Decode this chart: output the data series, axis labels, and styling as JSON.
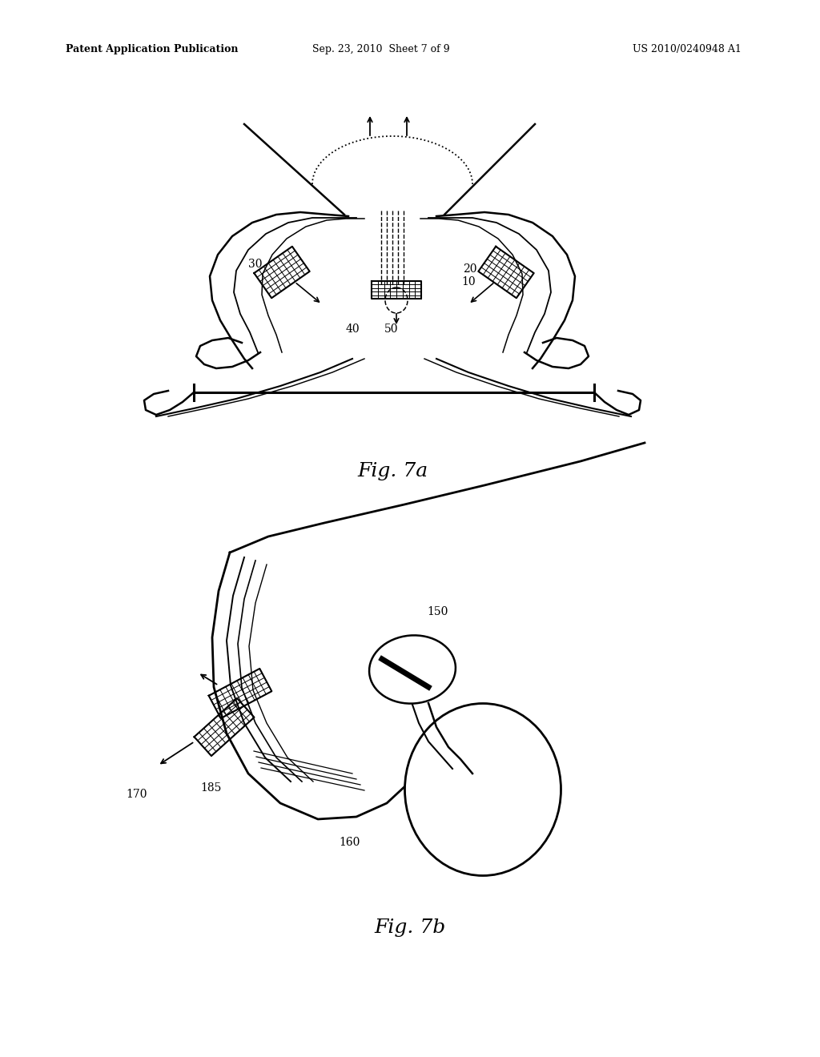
{
  "title_left": "Patent Application Publication",
  "title_center": "Sep. 23, 2010  Sheet 7 of 9",
  "title_right": "US 2010/0240948 A1",
  "fig7a_label": "Fig. 7a",
  "fig7b_label": "Fig. 7b",
  "bg_color": "#ffffff",
  "line_color": "#000000",
  "font_size_header": 9,
  "font_size_label": 10,
  "font_size_fig": 18
}
